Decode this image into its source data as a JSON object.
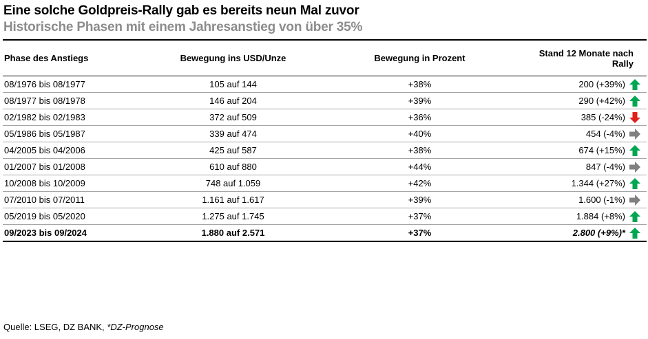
{
  "title": "Eine solche Goldpreis-Rally gab es bereits neun Mal zuvor",
  "subtitle": "Historische Phasen mit einem Jahresanstieg von über 35%",
  "columns": [
    "Phase des Anstiegs",
    "Bewegung ins USD/Unze",
    "Bewegung in Prozent",
    "Stand 12 Monate nach Rally"
  ],
  "rows": [
    {
      "phase": "08/1976 bis 08/1977",
      "movement": "105 auf 144",
      "percent": "+38%",
      "after": "200 (+39%)",
      "trend": "up"
    },
    {
      "phase": "08/1977 bis 08/1978",
      "movement": "146 auf 204",
      "percent": "+39%",
      "after": "290 (+42%)",
      "trend": "up"
    },
    {
      "phase": "02/1982 bis 02/1983",
      "movement": "372 auf 509",
      "percent": "+36%",
      "after": "385 (-24%)",
      "trend": "down"
    },
    {
      "phase": "05/1986 bis 05/1987",
      "movement": "339 auf 474",
      "percent": "+40%",
      "after": "454 (-4%)",
      "trend": "flat"
    },
    {
      "phase": "04/2005 bis 04/2006",
      "movement": "425 auf 587",
      "percent": "+38%",
      "after": "674 (+15%)",
      "trend": "up"
    },
    {
      "phase": "01/2007 bis 01/2008",
      "movement": "610 auf 880",
      "percent": "+44%",
      "after": "847 (-4%)",
      "trend": "flat"
    },
    {
      "phase": "10/2008 bis 10/2009",
      "movement": "748 auf 1.059",
      "percent": "+42%",
      "after": "1.344 (+27%)",
      "trend": "up"
    },
    {
      "phase": "07/2010 bis 07/2011",
      "movement": "1.161 auf 1.617",
      "percent": "+39%",
      "after": "1.600 (-1%)",
      "trend": "flat"
    },
    {
      "phase": "05/2019 bis 05/2020",
      "movement": "1.275 auf 1.745",
      "percent": "+37%",
      "after": "1.884 (+8%)",
      "trend": "up"
    },
    {
      "phase": "09/2023 bis 09/2024",
      "movement": "1.880 auf 2.571",
      "percent": "+37%",
      "after": "2.800 (+9%)*",
      "trend": "up"
    }
  ],
  "source": {
    "text": "Quelle: LSEG, DZ BANK, ",
    "note": "*DZ-Prognose"
  },
  "colors": {
    "up": "#00a651",
    "down": "#e0201b",
    "flat": "#808080",
    "subtitle": "#8c8c8c"
  }
}
